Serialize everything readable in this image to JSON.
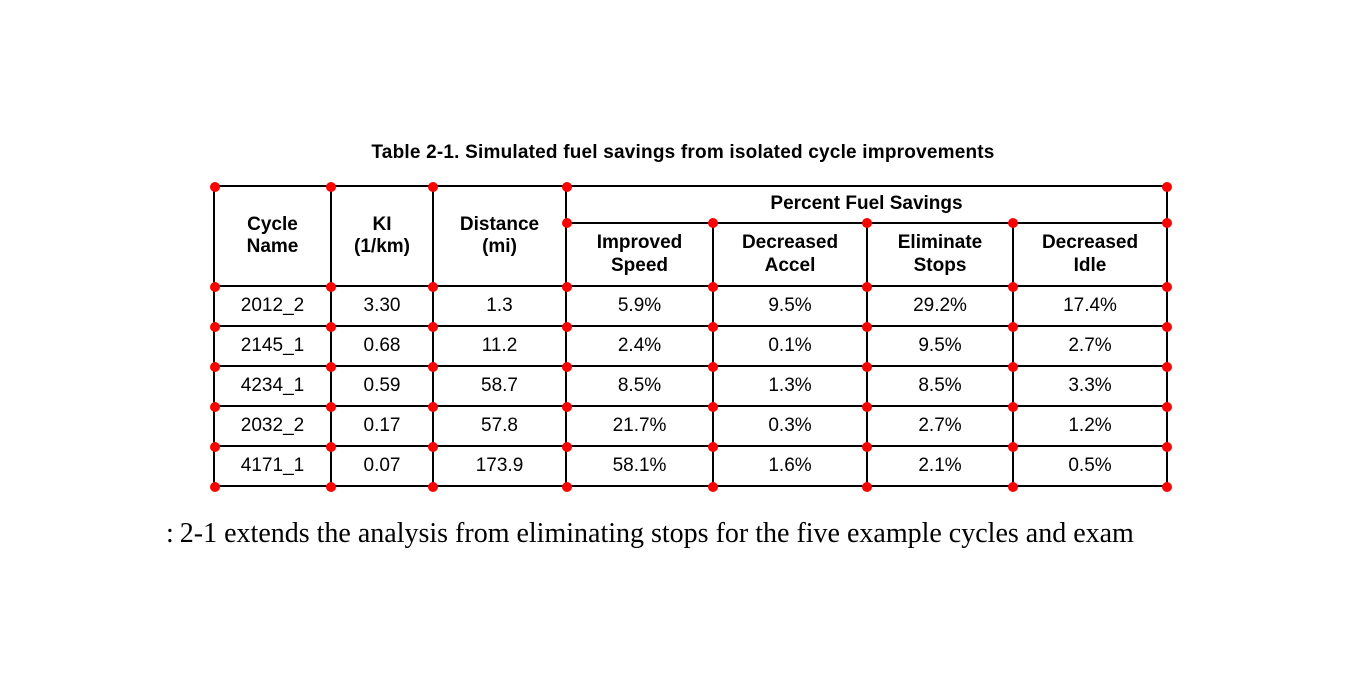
{
  "page": {
    "background": "#ffffff"
  },
  "table": {
    "caption": "Table 2-1. Simulated fuel savings from isolated cycle improvements",
    "marker_color": "#ff0000",
    "header": {
      "col_cycle": "Cycle\nName",
      "col_ki": "KI\n(1/km)",
      "col_distance": "Distance\n(mi)",
      "group": "Percent Fuel Savings",
      "sub": [
        "Improved\nSpeed",
        "Decreased\nAccel",
        "Eliminate\nStops",
        "Decreased\nIdle"
      ]
    },
    "rows": [
      [
        "2012_2",
        "3.30",
        "1.3",
        "5.9%",
        "9.5%",
        "29.2%",
        "17.4%"
      ],
      [
        "2145_1",
        "0.68",
        "11.2",
        "2.4%",
        "0.1%",
        "9.5%",
        "2.7%"
      ],
      [
        "4234_1",
        "0.59",
        "58.7",
        "8.5%",
        "1.3%",
        "8.5%",
        "3.3%"
      ],
      [
        "2032_2",
        "0.17",
        "57.8",
        "21.7%",
        "0.3%",
        "2.7%",
        "1.2%"
      ],
      [
        "4171_1",
        "0.07",
        "173.9",
        "58.1%",
        "1.6%",
        "2.1%",
        "0.5%"
      ]
    ]
  },
  "body_text": {
    "fragment": ":",
    "text": "2-1 extends the analysis from eliminating stops for the five example cycles and exam"
  }
}
